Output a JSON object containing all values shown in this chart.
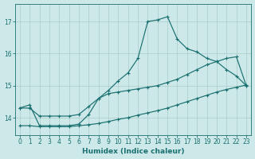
{
  "xlabel": "Humidex (Indice chaleur)",
  "xlim": [
    -0.5,
    23.5
  ],
  "ylim": [
    13.45,
    17.55
  ],
  "yticks": [
    14,
    15,
    16,
    17
  ],
  "xticks": [
    0,
    1,
    2,
    3,
    4,
    5,
    6,
    7,
    8,
    9,
    10,
    11,
    12,
    13,
    14,
    15,
    16,
    17,
    18,
    19,
    20,
    21,
    22,
    23
  ],
  "bg_color": "#cce8e8",
  "grid_color": "#aacccc",
  "line_color": "#1a7070",
  "line1_x": [
    0,
    1,
    2,
    3,
    4,
    5,
    6,
    7,
    8,
    9,
    10,
    11,
    12,
    13,
    14,
    15,
    16,
    17,
    18,
    19,
    20,
    21,
    22,
    23
  ],
  "line1_y": [
    14.3,
    14.4,
    13.75,
    13.75,
    13.75,
    13.75,
    13.8,
    14.1,
    14.6,
    14.85,
    15.15,
    15.4,
    15.85,
    17.0,
    17.05,
    17.15,
    16.45,
    16.15,
    16.05,
    15.85,
    15.75,
    15.5,
    15.3,
    15.0
  ],
  "line2_x": [
    0,
    1,
    2,
    3,
    4,
    5,
    6,
    7,
    8,
    9,
    10,
    11,
    12,
    13,
    14,
    15,
    16,
    17,
    18,
    19,
    20,
    21,
    22,
    23
  ],
  "line2_y": [
    14.3,
    14.3,
    14.05,
    14.05,
    14.05,
    14.05,
    14.1,
    14.35,
    14.6,
    14.75,
    14.8,
    14.85,
    14.9,
    14.95,
    15.0,
    15.1,
    15.2,
    15.35,
    15.5,
    15.65,
    15.75,
    15.85,
    15.9,
    15.0
  ],
  "line3_x": [
    0,
    1,
    2,
    3,
    4,
    5,
    6,
    7,
    8,
    9,
    10,
    11,
    12,
    13,
    14,
    15,
    16,
    17,
    18,
    19,
    20,
    21,
    22,
    23
  ],
  "line3_y": [
    13.75,
    13.75,
    13.72,
    13.72,
    13.72,
    13.72,
    13.75,
    13.78,
    13.82,
    13.88,
    13.95,
    14.0,
    14.08,
    14.15,
    14.22,
    14.3,
    14.4,
    14.5,
    14.6,
    14.7,
    14.8,
    14.88,
    14.95,
    15.02
  ]
}
